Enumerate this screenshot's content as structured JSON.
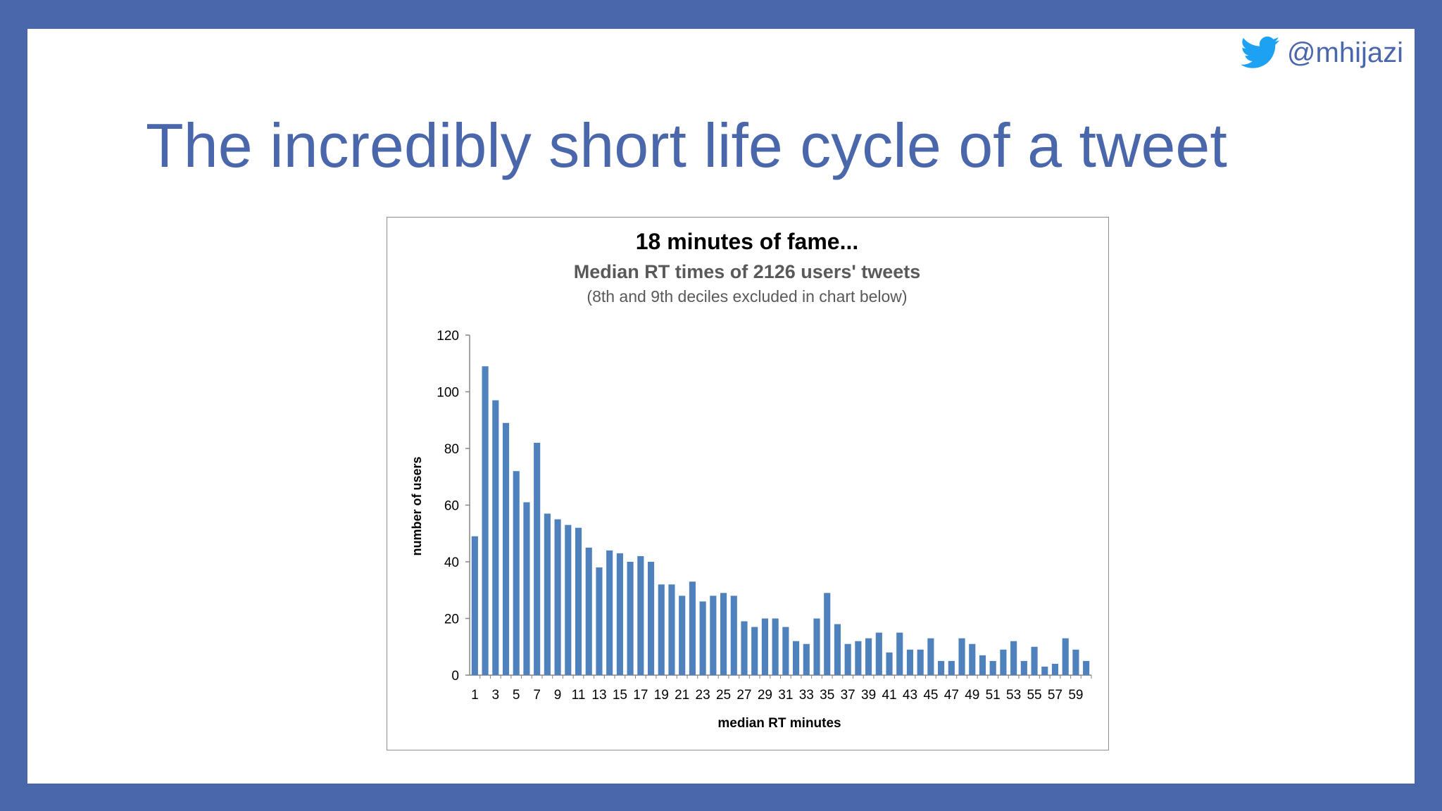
{
  "handle": "@mhijazi",
  "icons": {
    "social": "twitter-bird-icon"
  },
  "colors": {
    "frame": "#4a67ab",
    "title": "#4a67ab",
    "bars": "#4f81bd"
  },
  "slide_title": "The incredibly short life cycle of a tweet",
  "chart_data": {
    "type": "bar",
    "title": "18 minutes of fame...",
    "subtitle": "Median RT times of 2126 users' tweets",
    "note": "(8th and 9th deciles excluded in chart below)",
    "xlabel": "median RT minutes",
    "ylabel": "number of users",
    "ylim": [
      0,
      120
    ],
    "yticks": [
      0,
      20,
      40,
      60,
      80,
      100,
      120
    ],
    "categories": [
      1,
      2,
      3,
      4,
      5,
      6,
      7,
      8,
      9,
      10,
      11,
      12,
      13,
      14,
      15,
      16,
      17,
      18,
      19,
      20,
      21,
      22,
      23,
      24,
      25,
      26,
      27,
      28,
      29,
      30,
      31,
      32,
      33,
      34,
      35,
      36,
      37,
      38,
      39,
      40,
      41,
      42,
      43,
      44,
      45,
      46,
      47,
      48,
      49,
      50,
      51,
      52,
      53,
      54,
      55,
      56,
      57,
      58,
      59,
      60
    ],
    "xtick_labels": [
      1,
      3,
      5,
      7,
      9,
      11,
      13,
      15,
      17,
      19,
      21,
      23,
      25,
      27,
      29,
      31,
      33,
      35,
      37,
      39,
      41,
      43,
      45,
      47,
      49,
      51,
      53,
      55,
      57,
      59
    ],
    "values": [
      49,
      109,
      97,
      89,
      72,
      61,
      82,
      57,
      55,
      53,
      52,
      45,
      38,
      44,
      43,
      40,
      42,
      40,
      32,
      32,
      28,
      33,
      26,
      28,
      29,
      28,
      19,
      17,
      20,
      20,
      17,
      12,
      11,
      20,
      29,
      18,
      11,
      12,
      13,
      15,
      8,
      15,
      9,
      9,
      13,
      5,
      5,
      13,
      11,
      7,
      5,
      9,
      12,
      5,
      10,
      3,
      4,
      13,
      9,
      5
    ],
    "grid": false,
    "legend": "none"
  }
}
